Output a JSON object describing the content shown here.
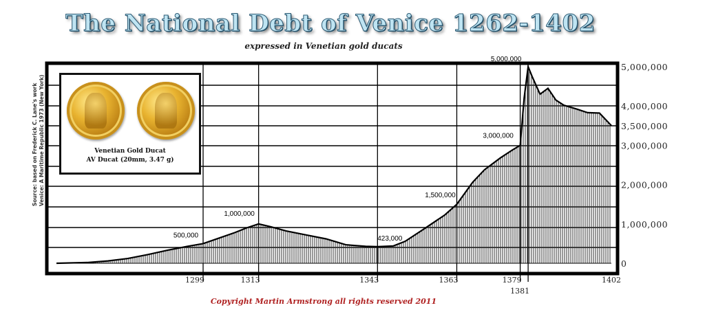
{
  "title": "The National Debt of Venice 1262-1402",
  "subtitle": "expressed in Venetian gold ducats",
  "copyright": "Copyright Martin Armstrong all rights reserved 2011",
  "source_line1": "Source: based on Frederick C. Lane's work",
  "source_line2": "Venice: A Maritime Republic 1973 (New York)",
  "inset": {
    "caption1": "Venetian Gold Ducat",
    "caption2": "AV Ducat (20mm, 3.47 g)"
  },
  "colors": {
    "title_fill": "#bfe4f2",
    "title_stroke": "#2b5a74",
    "copyright": "#b02222",
    "bars": "#333333"
  },
  "chart_data": {
    "type": "area",
    "title": "The National Debt of Venice 1262-1402",
    "subtitle": "expressed in Venetian gold ducats",
    "x_ticks": [
      "1299",
      "1313",
      "1343",
      "1363",
      "1379",
      "1381",
      "1402"
    ],
    "y_ticks": [
      "0",
      "1,000,000",
      "2,000,000",
      "3,000,000",
      "3,500,000",
      "4,000,000",
      "5,000,000"
    ],
    "ylim": [
      0,
      5000000
    ],
    "xlim": [
      1262,
      1402
    ],
    "annotations": [
      {
        "label": "500,000",
        "x": 1299,
        "y": 500000
      },
      {
        "label": "1,000,000",
        "x": 1313,
        "y": 1000000
      },
      {
        "label": "423,000",
        "x": 1343,
        "y": 423000
      },
      {
        "label": "1,500,000",
        "x": 1363,
        "y": 1500000
      },
      {
        "label": "3,000,000",
        "x": 1379,
        "y": 3000000
      },
      {
        "label": "5,000,000",
        "x": 1381,
        "y": 5000000
      }
    ],
    "series": [
      {
        "x": [
          1262,
          1270,
          1275,
          1280,
          1285,
          1290,
          1295,
          1299,
          1303,
          1307,
          1310,
          1313,
          1316,
          1320,
          1325,
          1330,
          1335,
          1340,
          1343,
          1347,
          1350,
          1355,
          1360,
          1363,
          1367,
          1370,
          1374,
          1377,
          1379,
          1380,
          1381,
          1382,
          1384,
          1386,
          1388,
          1390,
          1393,
          1396,
          1399,
          1402
        ],
        "values": [
          0,
          20000,
          60000,
          120000,
          220000,
          330000,
          430000,
          500000,
          640000,
          780000,
          900000,
          1000000,
          930000,
          820000,
          720000,
          620000,
          470000,
          430000,
          423000,
          440000,
          560000,
          890000,
          1230000,
          1500000,
          2060000,
          2380000,
          2680000,
          2880000,
          3000000,
          4200000,
          5000000,
          4750000,
          4300000,
          4450000,
          4150000,
          4020000,
          3930000,
          3830000,
          3820000,
          3500000
        ]
      }
    ],
    "grid": true
  }
}
